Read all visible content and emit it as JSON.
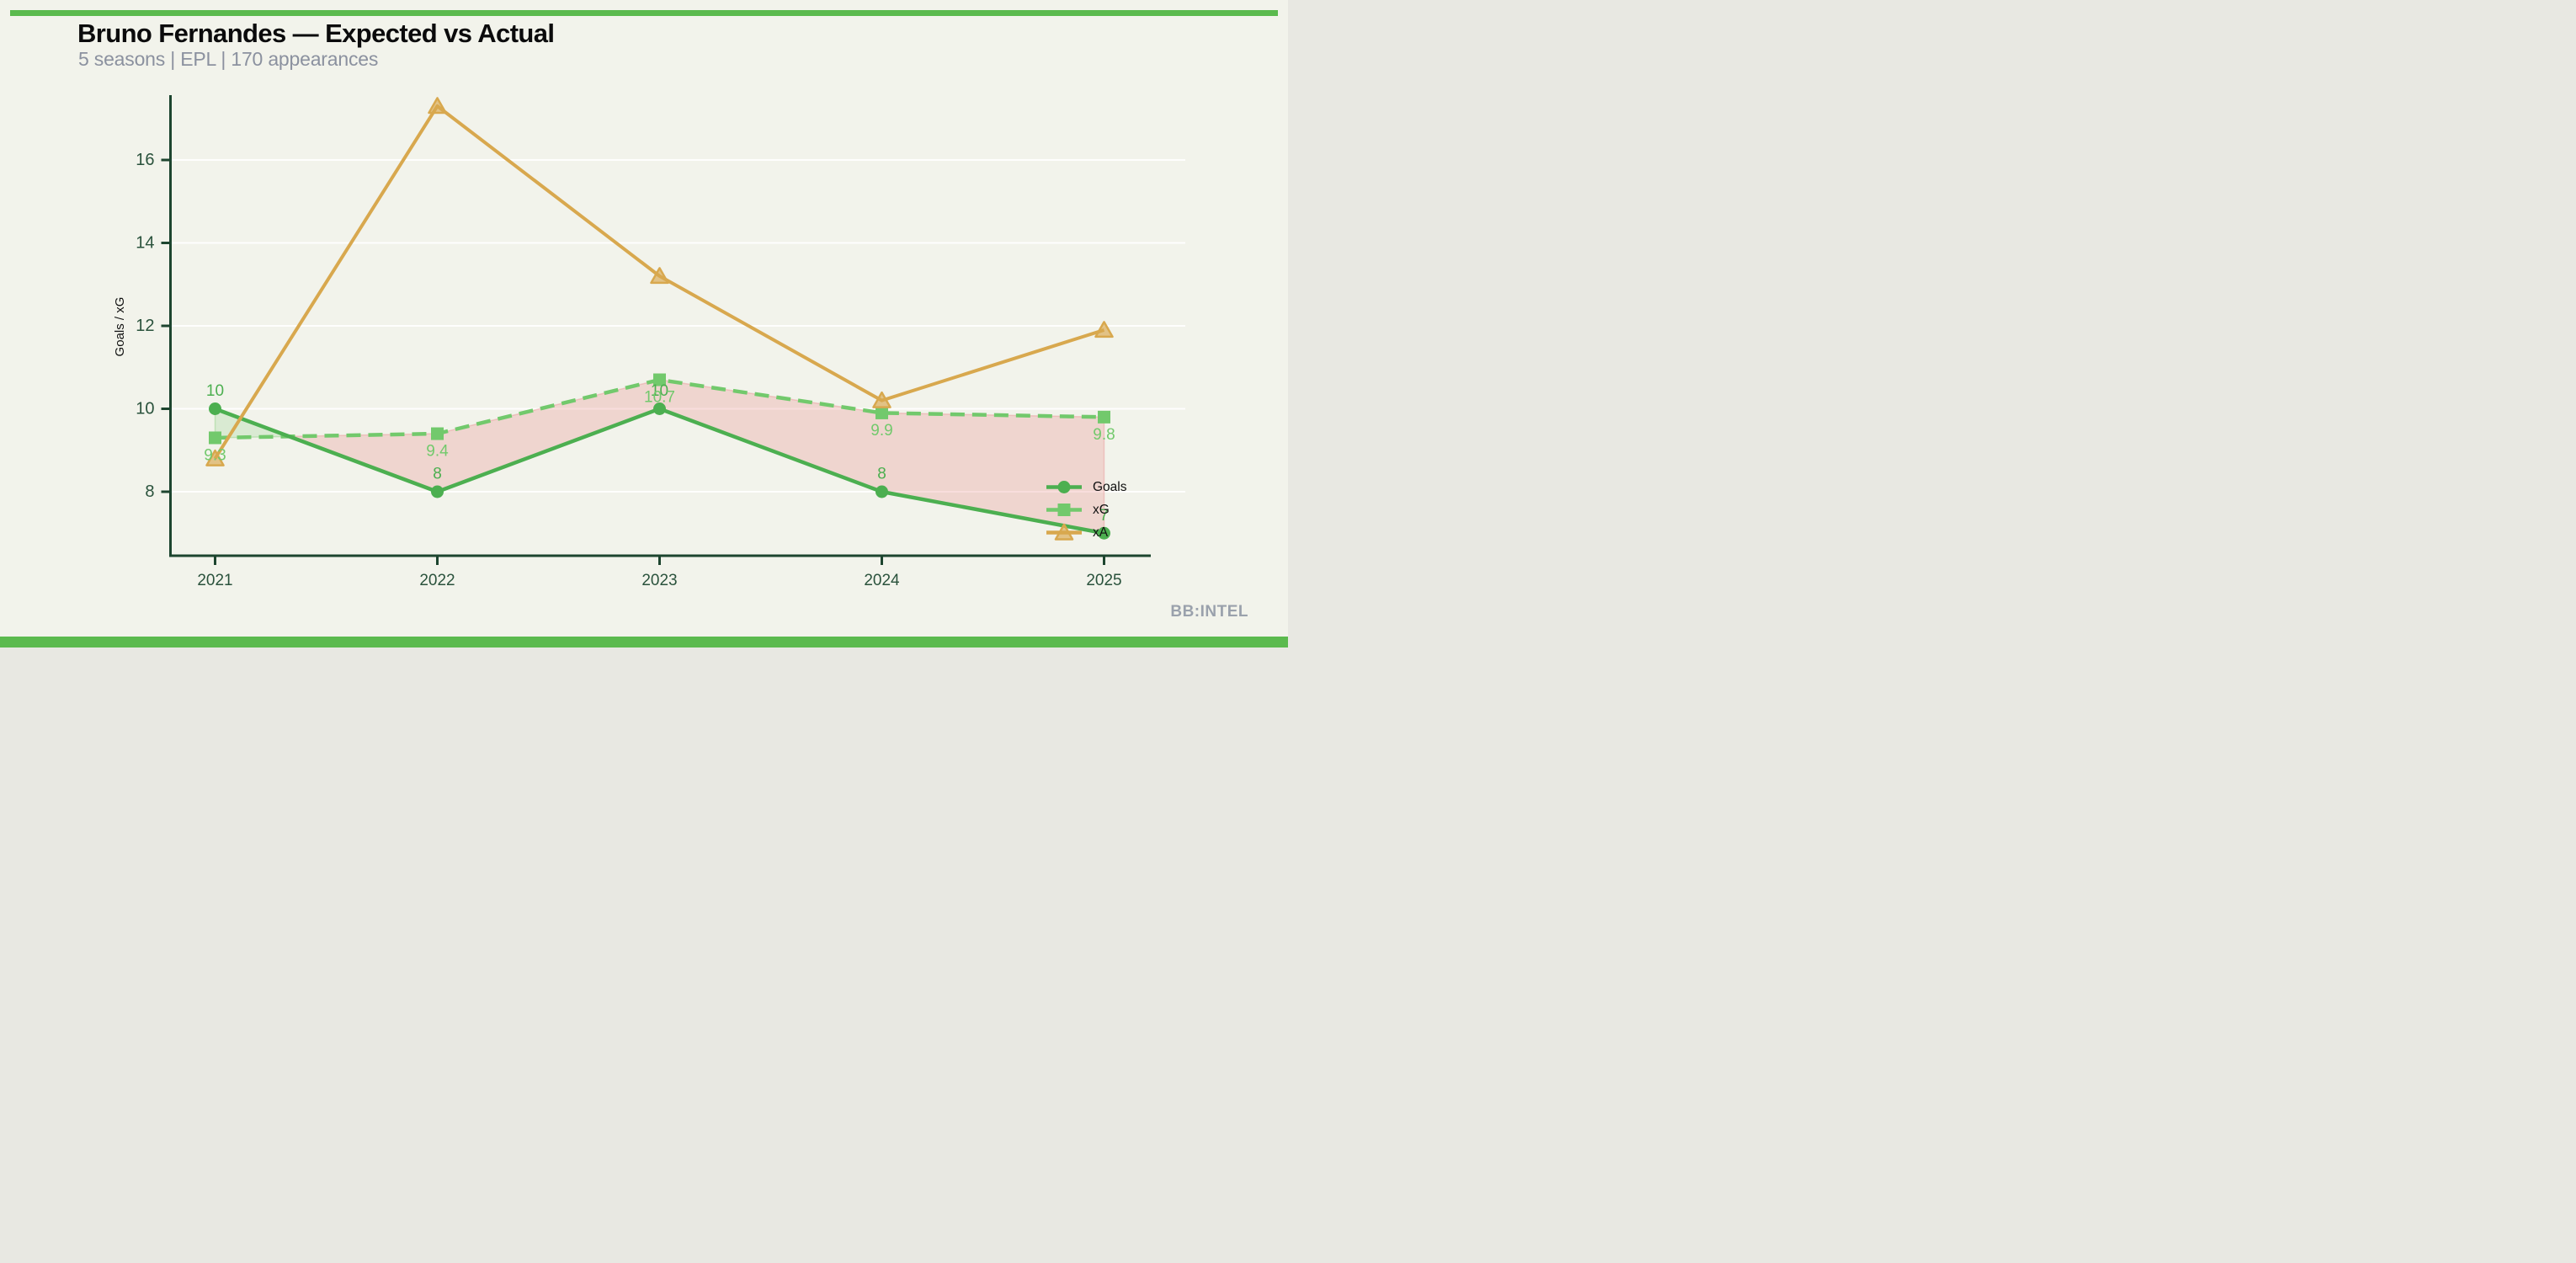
{
  "page": {
    "background_color": "#F2F3EB",
    "accent_bar_color": "#5BBA4E"
  },
  "header": {
    "title": "Bruno Fernandes — Expected vs Actual",
    "subtitle": "5 seasons | EPL | 170 appearances"
  },
  "branding": {
    "watermark": "BB:INTEL"
  },
  "chart_data": {
    "type": "line",
    "title": "Bruno Fernandes — Expected vs Actual",
    "xlabel": "",
    "ylabel": "Goals / xG",
    "categories": [
      "2021",
      "2022",
      "2023",
      "2024",
      "2025"
    ],
    "series": [
      {
        "name": "Goals",
        "values": [
          10,
          8,
          10,
          8,
          7
        ],
        "point_labels": [
          "10",
          "8",
          "10",
          "8",
          "7"
        ],
        "color": "#4CAF50",
        "marker": "circle",
        "line_style": "solid"
      },
      {
        "name": "xG",
        "values": [
          9.3,
          9.4,
          10.7,
          9.9,
          9.8
        ],
        "point_labels": [
          "9.3",
          "9.4",
          "10.7",
          "9.9",
          "9.8"
        ],
        "color": "#72C96C",
        "marker": "square",
        "line_style": "dashed"
      },
      {
        "name": "xA",
        "values": [
          8.8,
          17.3,
          13.2,
          10.2,
          11.9
        ],
        "point_labels": null,
        "color": "#D8A84E",
        "marker": "triangle",
        "line_style": "solid"
      }
    ],
    "fill_between": {
      "upper": "xG",
      "lower": "Goals",
      "overperform_color": "rgba(120,200,110,0.20)",
      "underperform_color": "rgba(233,128,128,0.26)"
    },
    "yticks": [
      "8",
      "10",
      "12",
      "14",
      "16"
    ],
    "ytick_values": [
      8,
      10,
      12,
      14,
      16
    ],
    "ylim": [
      6.5,
      17.6
    ],
    "grid": "faint horizontal gridlines",
    "legend_position": "lower right",
    "axis_color": "#1D452F",
    "tick_label_color": "#2A523C"
  }
}
